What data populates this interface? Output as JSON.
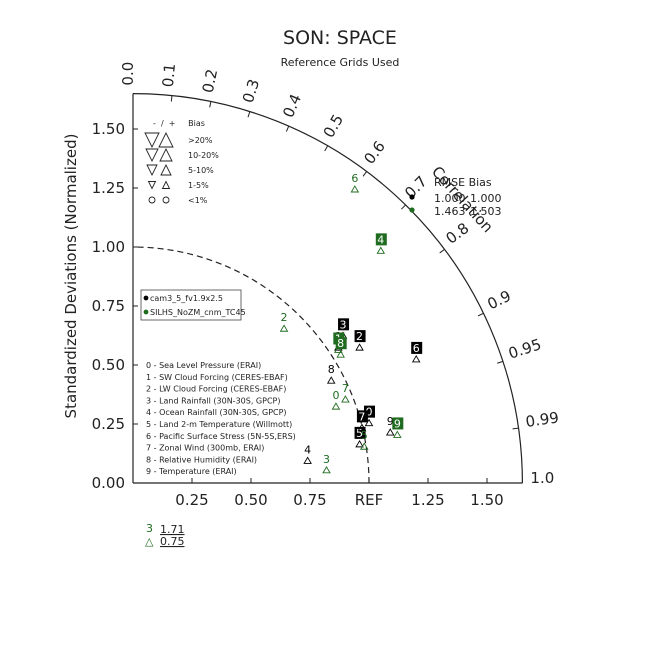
{
  "chart_data": {
    "type": "scatter",
    "plot_kind": "taylor-diagram",
    "title": "SON: SPACE",
    "subtitle": "Reference Grids Used",
    "ylabel": "Standardized Deviations (Normalized)",
    "correlation_label": "Correlation",
    "ref_label": "REF",
    "std_ticks": [
      "0.00",
      "0.25",
      "0.50",
      "0.75",
      "1.00",
      "1.25",
      "1.50"
    ],
    "x_ticks": [
      "0.25",
      "0.50",
      "0.75",
      "1.25",
      "1.50"
    ],
    "corr_ticks": [
      "0.0",
      "0.1",
      "0.2",
      "0.3",
      "0.4",
      "0.5",
      "0.6",
      "0.7",
      "0.8",
      "0.9",
      "0.95",
      "0.99",
      "1.0"
    ],
    "bias_legend": {
      "header": "-  /  +     Bias",
      "rows": [
        ">20%",
        "10-20%",
        "5-10%",
        "1-5%",
        "<1%"
      ]
    },
    "rmse_box": {
      "header": "RMSE  Bias",
      "rows": [
        {
          "rmse": "1.000",
          "bias": "1.000",
          "color": "#000000"
        },
        {
          "rmse": "1.463",
          "bias": "1.503",
          "color": "#1f6b1f"
        }
      ]
    },
    "cases": [
      {
        "name": "cam3_5_fv1.9x2.5",
        "color": "#000000"
      },
      {
        "name": "SILHS_NoZM_cnm_TC45",
        "color": "#1f6b1f"
      }
    ],
    "variables": [
      "0 - Sea Level Pressure (ERAI)",
      "1 - SW Cloud Forcing (CERES-EBAF)",
      "2 - LW Cloud Forcing (CERES-EBAF)",
      "3 - Land Rainfall (30N-30S, GPCP)",
      "4 - Ocean Rainfall (30N-30S, GPCP)",
      "5 - Land 2-m Temperature (Willmott)",
      "6 - Pacific Surface Stress (5N-5S,ERS)",
      "7 - Zonal Wind (300mb, ERAI)",
      "8 - Relative Humidity (ERAI)",
      "9 - Temperature (ERAI)"
    ],
    "series": [
      {
        "name": "cam3_5_fv1.9x2.5",
        "points": [
          {
            "id": "0",
            "x": 1.0,
            "y": 0.26,
            "boxed": true
          },
          {
            "id": "1",
            "x": 0.87,
            "y": 0.58,
            "boxed": false
          },
          {
            "id": "2",
            "x": 0.96,
            "y": 0.58,
            "boxed": true
          },
          {
            "id": "3",
            "x": 0.89,
            "y": 0.63,
            "boxed": true
          },
          {
            "id": "4",
            "x": 0.74,
            "y": 0.1,
            "boxed": false
          },
          {
            "id": "5",
            "x": 0.96,
            "y": 0.17,
            "boxed": true
          },
          {
            "id": "6",
            "x": 1.2,
            "y": 0.53,
            "boxed": true
          },
          {
            "id": "7",
            "x": 0.97,
            "y": 0.24,
            "boxed": true
          },
          {
            "id": "8",
            "x": 0.84,
            "y": 0.44,
            "boxed": false
          },
          {
            "id": "9",
            "x": 1.09,
            "y": 0.22,
            "boxed": false
          }
        ]
      },
      {
        "name": "SILHS_NoZM_cnm_TC45",
        "points": [
          {
            "id": "0",
            "x": 0.86,
            "y": 0.33,
            "boxed": false
          },
          {
            "id": "1",
            "x": 0.87,
            "y": 0.57,
            "boxed": true
          },
          {
            "id": "2",
            "x": 0.64,
            "y": 0.66,
            "boxed": false
          },
          {
            "id": "3",
            "x": 0.82,
            "y": 0.06,
            "boxed": false
          },
          {
            "id": "4",
            "x": 1.05,
            "y": 0.99,
            "boxed": true
          },
          {
            "id": "5",
            "x": 0.98,
            "y": 0.16,
            "boxed": false
          },
          {
            "id": "6",
            "x": 0.94,
            "y": 1.25,
            "boxed": false
          },
          {
            "id": "7",
            "x": 0.9,
            "y": 0.36,
            "boxed": false
          },
          {
            "id": "8",
            "x": 0.88,
            "y": 0.55,
            "boxed": true
          },
          {
            "id": "9",
            "x": 1.12,
            "y": 0.21,
            "boxed": true
          }
        ]
      }
    ],
    "footnote": [
      {
        "id": "3",
        "value": "1.71",
        "color": "#1f6b1f",
        "symbol": "△"
      },
      {
        "id": "",
        "value": "0.75",
        "color": "#1f6b1f",
        "symbol": "△"
      }
    ],
    "xlim": [
      0,
      1.65
    ],
    "ylim": [
      0,
      1.65
    ]
  }
}
